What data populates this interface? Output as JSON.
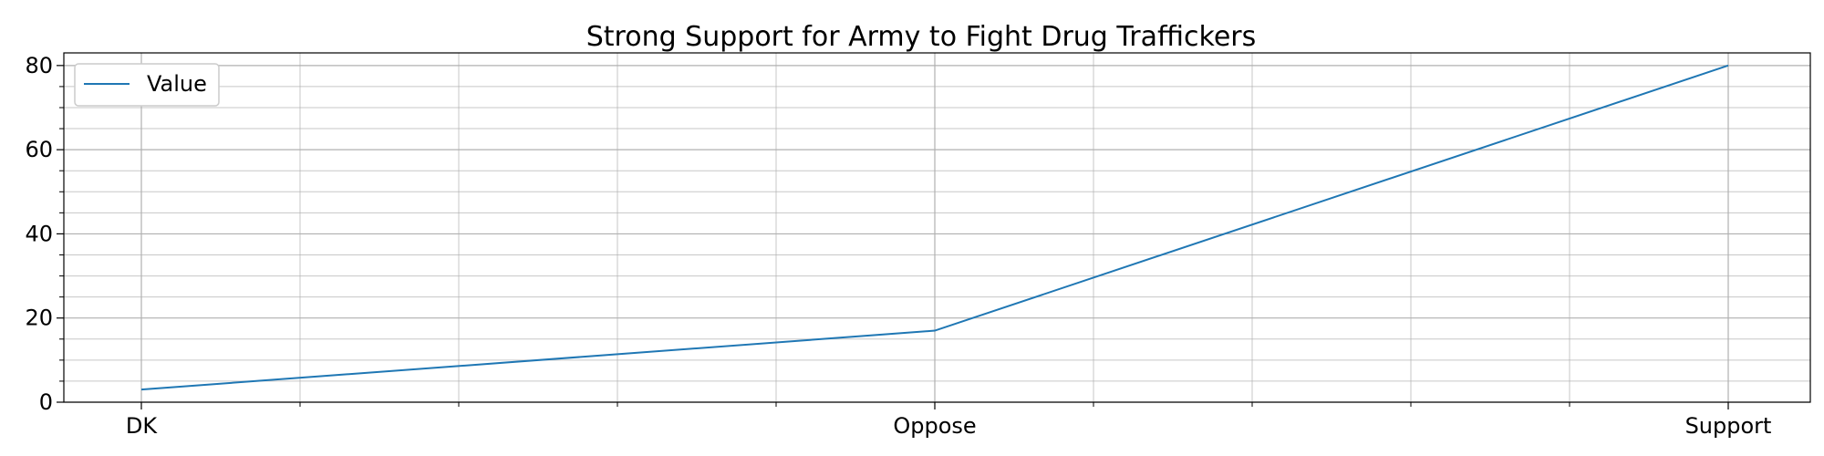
{
  "chart_data": {
    "type": "line",
    "title": "Strong Support for Army to Fight Drug Traffickers",
    "xlabel": "",
    "ylabel": "",
    "categories": [
      "DK",
      "Oppose",
      "Support"
    ],
    "series": [
      {
        "name": "Value",
        "values": [
          3,
          17,
          80
        ],
        "color": "#1f77b4"
      }
    ],
    "ylim": [
      0,
      83
    ],
    "y_major_ticks": [
      0,
      20,
      40,
      60,
      80
    ],
    "y_minor_step": 5,
    "x_minor_divisions": 5,
    "grid": true,
    "minor_grid": true,
    "legend_position": "top-left"
  }
}
